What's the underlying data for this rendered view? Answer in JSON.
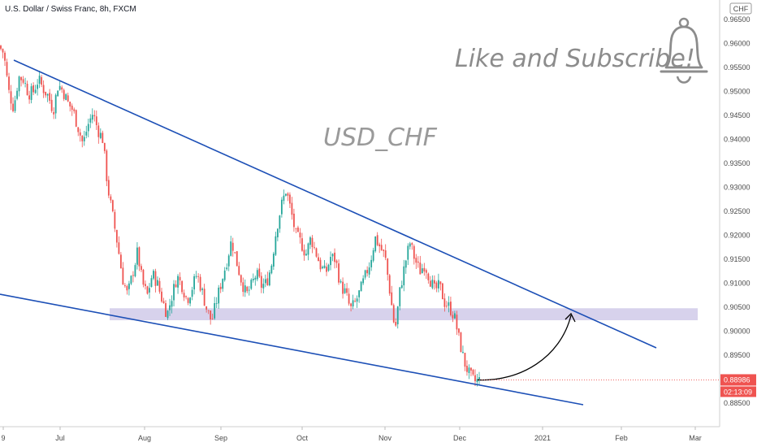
{
  "symbol_title": "U.S. Dollar / Swiss Franc, 8h, FXCM",
  "watermark_text": "USD_CHF",
  "promo_text": "Like and Subscribe!",
  "bell_icon": "bell-icon",
  "currency_badge": "CHF",
  "last_price": "0.88986",
  "countdown": "02:13:09",
  "colors": {
    "up_candle": "#26a69a",
    "down_candle": "#ef5350",
    "trendline": "#1c4fb6",
    "zone": "#c9c3e6",
    "price_tag": "#ef5350",
    "arrow": "#000000"
  },
  "chart_data": {
    "type": "candlestick",
    "title": "U.S. Dollar / Swiss Franc, 8h, FXCM",
    "x_ticks": [
      "9",
      "Jul",
      "Aug",
      "Sep",
      "Oct",
      "Nov",
      "Dec",
      "2021",
      "Feb",
      "Mar"
    ],
    "y_ticks": [
      "0.96500",
      "0.96000",
      "0.95500",
      "0.95000",
      "0.94500",
      "0.94000",
      "0.93500",
      "0.93000",
      "0.92500",
      "0.92000",
      "0.91500",
      "0.91000",
      "0.90500",
      "0.90000",
      "0.89500",
      "0.88500"
    ],
    "ylim": [
      0.8835,
      0.9665
    ],
    "close_path": [
      [
        0.0,
        0.9595
      ],
      [
        2,
        0.958
      ],
      [
        3,
        0.95
      ],
      [
        4,
        0.9465
      ],
      [
        5,
        0.953
      ],
      [
        6,
        0.9525
      ],
      [
        7,
        0.9495
      ],
      [
        8,
        0.95
      ],
      [
        9,
        0.9525
      ],
      [
        10,
        0.9505
      ],
      [
        11,
        0.949
      ],
      [
        12,
        0.946
      ],
      [
        13,
        0.9515
      ],
      [
        14,
        0.95
      ],
      [
        15,
        0.9475
      ],
      [
        16,
        0.946
      ],
      [
        17,
        0.9425
      ],
      [
        18,
        0.939
      ],
      [
        19,
        0.943
      ],
      [
        20,
        0.9455
      ],
      [
        21,
        0.942
      ],
      [
        22,
        0.94
      ],
      [
        23,
        0.93
      ],
      [
        24,
        0.924
      ],
      [
        25,
        0.918
      ],
      [
        26,
        0.911
      ],
      [
        27,
        0.9075
      ],
      [
        28,
        0.912
      ],
      [
        29,
        0.9165
      ],
      [
        30,
        0.91
      ],
      [
        31,
        0.9075
      ],
      [
        32,
        0.912
      ],
      [
        33,
        0.91
      ],
      [
        34,
        0.9065
      ],
      [
        35,
        0.9035
      ],
      [
        36,
        0.9075
      ],
      [
        37,
        0.9115
      ],
      [
        38,
        0.9095
      ],
      [
        39,
        0.9065
      ],
      [
        40,
        0.909
      ],
      [
        41,
        0.912
      ],
      [
        42,
        0.9085
      ],
      [
        43,
        0.9045
      ],
      [
        44,
        0.902
      ],
      [
        45,
        0.9065
      ],
      [
        46,
        0.9105
      ],
      [
        47,
        0.9145
      ],
      [
        48,
        0.919
      ],
      [
        49,
        0.9145
      ],
      [
        50,
        0.9105
      ],
      [
        51,
        0.9075
      ],
      [
        52,
        0.9095
      ],
      [
        53,
        0.912
      ],
      [
        54,
        0.9095
      ],
      [
        55,
        0.91
      ],
      [
        56,
        0.9135
      ],
      [
        57,
        0.921
      ],
      [
        58,
        0.926
      ],
      [
        59,
        0.9295
      ],
      [
        60,
        0.925
      ],
      [
        61,
        0.92
      ],
      [
        62,
        0.9185
      ],
      [
        63,
        0.916
      ],
      [
        64,
        0.9195
      ],
      [
        65,
        0.9165
      ],
      [
        66,
        0.9135
      ],
      [
        67,
        0.912
      ],
      [
        68,
        0.9155
      ],
      [
        69,
        0.915
      ],
      [
        70,
        0.9095
      ],
      [
        71,
        0.908
      ],
      [
        72,
        0.9045
      ],
      [
        73,
        0.906
      ],
      [
        74,
        0.9085
      ],
      [
        75,
        0.9115
      ],
      [
        76,
        0.9145
      ],
      [
        77,
        0.9195
      ],
      [
        78,
        0.9175
      ],
      [
        79,
        0.9155
      ],
      [
        80,
        0.908
      ],
      [
        81,
        0.9
      ],
      [
        82,
        0.9085
      ],
      [
        83,
        0.914
      ],
      [
        84,
        0.9185
      ],
      [
        85,
        0.915
      ],
      [
        86,
        0.9125
      ],
      [
        87,
        0.914
      ],
      [
        88,
        0.911
      ],
      [
        89,
        0.9085
      ],
      [
        90,
        0.9095
      ],
      [
        91,
        0.906
      ],
      [
        92,
        0.905
      ],
      [
        93,
        0.903
      ],
      [
        94,
        0.898
      ],
      [
        95,
        0.8935
      ],
      [
        96,
        0.891
      ],
      [
        97,
        0.8895
      ],
      [
        98,
        0.8898
      ]
    ],
    "annotations": [
      {
        "type": "trendline",
        "label": "upper",
        "from": [
          0.9565,
          "Jul-start"
        ],
        "to": [
          0.8966,
          "Feb-mid"
        ]
      },
      {
        "type": "trendline",
        "label": "lower",
        "from": [
          0.9082,
          "start"
        ],
        "to": [
          0.8853,
          "Jan-late"
        ]
      },
      {
        "type": "zone",
        "y_range": [
          0.9023,
          0.9048
        ]
      },
      {
        "type": "arrow",
        "from": [
          0.8898,
          "Dec"
        ],
        "to": [
          0.9025,
          "Jan"
        ]
      }
    ],
    "last_price": 0.88986
  }
}
